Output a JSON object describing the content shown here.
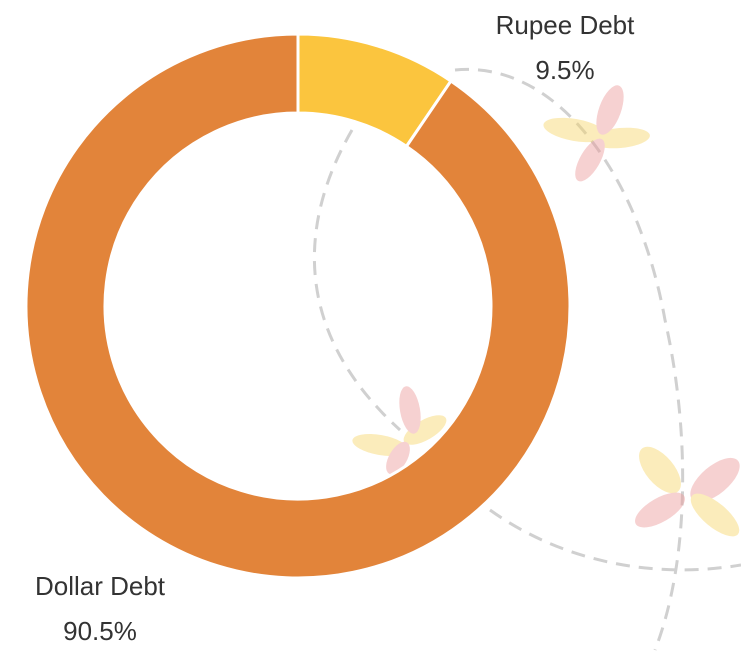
{
  "chart_data": {
    "type": "donut",
    "categories": [
      "Rupee Debt",
      "Dollar Debt"
    ],
    "values": [
      9.5,
      90.5
    ],
    "value_labels": [
      "9.5%",
      "90.5%"
    ],
    "colors": [
      "#fbc53e",
      "#e2843a"
    ]
  }
}
